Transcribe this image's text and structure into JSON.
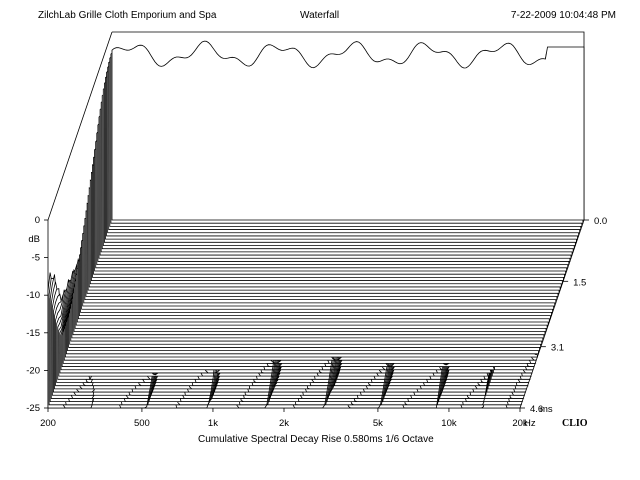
{
  "header": {
    "left": "ZilchLab Grille Cloth Emporium and Spa",
    "center": "Waterfall",
    "right": "7-22-2009 10:04:48 PM"
  },
  "footer": {
    "caption": "Cumulative Spectral Decay  Rise 0.580ms  1/6 Octave",
    "brand": "CLIO"
  },
  "chart_data": {
    "type": "area",
    "subtype": "3d-waterfall",
    "title": "Waterfall",
    "xlabel": "Hz",
    "ylabel": "dB",
    "zlabel": "ms",
    "x_scale": "log",
    "xlim": [
      200,
      20000
    ],
    "ylim": [
      -25,
      0
    ],
    "zlim": [
      0,
      4.6
    ],
    "x_ticks": [
      "200",
      "500",
      "1k",
      "2k",
      "5k",
      "10k",
      "20k"
    ],
    "x_tick_values": [
      200,
      500,
      1000,
      2000,
      5000,
      10000,
      20000
    ],
    "y_ticks": [
      "0",
      "-5",
      "-10",
      "-15",
      "-20",
      "-25"
    ],
    "y_tick_values": [
      0,
      -5,
      -10,
      -15,
      -20,
      -25
    ],
    "z_ticks": [
      "0.0",
      "1.5",
      "3.1",
      "4.6"
    ],
    "z_tick_values": [
      0.0,
      1.5,
      3.1,
      4.6
    ],
    "slice_count": 60,
    "grid": false,
    "legend": "none",
    "line_color": "#000000",
    "fill_color": "#ffffff"
  }
}
